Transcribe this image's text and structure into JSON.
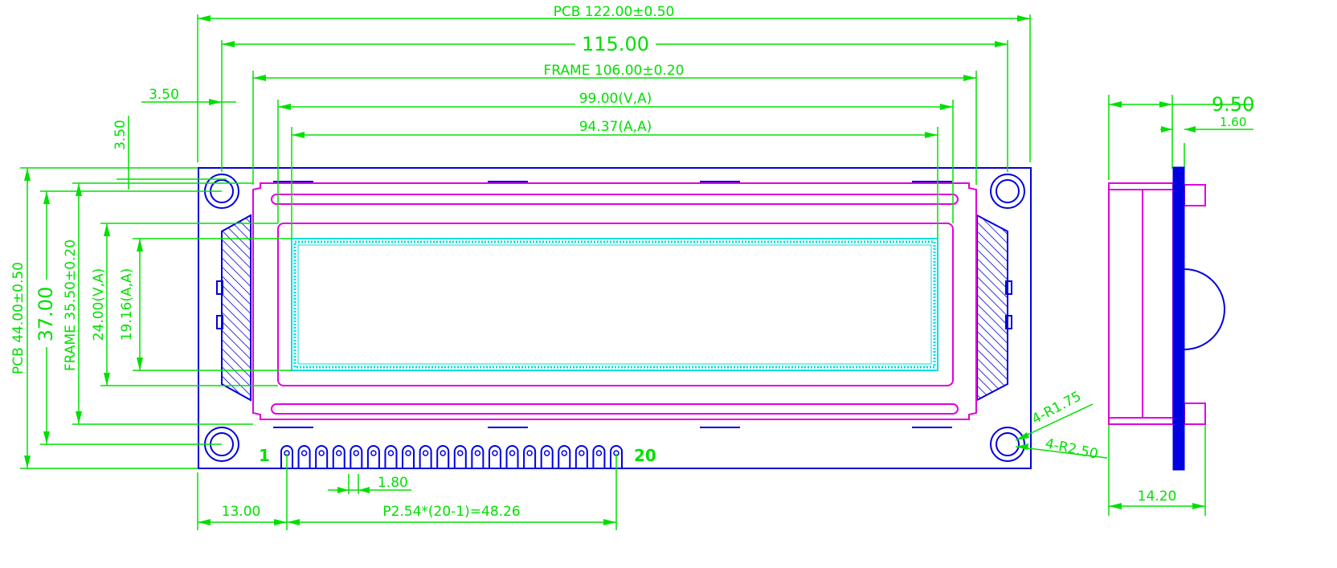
{
  "colors": {
    "dimension": "#00e000",
    "pcb": "#0000e0",
    "frame": "#e000e0",
    "viewing_area": "#00dddd",
    "background": "#ffffff"
  },
  "icons": {
    "mounting_hole": "double-circle",
    "pin": "rounded-pin-outline",
    "hatching": "diagonal-hatch"
  },
  "dimensions": {
    "pcb_width": "PCB 122.00±0.50",
    "hole_pitch_x": "115.00",
    "frame_width": "FRAME 106.00±0.20",
    "va_width": "99.00(V,A)",
    "aa_width": "94.37(A,A)",
    "hole_offset_x": "3.50",
    "hole_offset_y": "3.50",
    "pcb_height": "PCB 44.00±0.50",
    "hole_pitch_y": "37.00",
    "frame_height": "FRAME 35.50±0.20",
    "va_height": "24.00(V,A)",
    "aa_height": "19.16(A,A)",
    "hole_small_radius": "4-R1.75",
    "hole_large_radius": "4-R2.50",
    "pin_width": "1.80",
    "pin1_offset": "13.00",
    "pin_pitch": "P2.54*(20-1)=48.26",
    "side_total_depth": "9.50",
    "side_pcb_thickness": "1.60",
    "side_depth": "14.20"
  },
  "pins": {
    "count": 20,
    "first_label": "1",
    "last_label": "20"
  }
}
